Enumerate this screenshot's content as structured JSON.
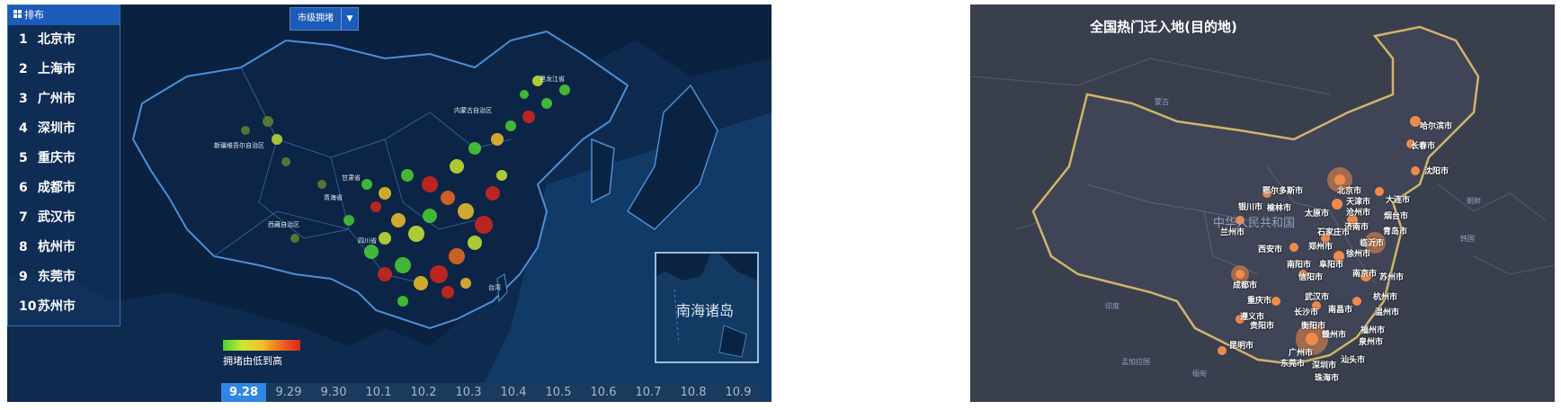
{
  "left_map": {
    "ranking": {
      "header": "排布",
      "items": [
        {
          "rank": "1",
          "city": "北京市"
        },
        {
          "rank": "2",
          "city": "上海市"
        },
        {
          "rank": "3",
          "city": "广州市"
        },
        {
          "rank": "4",
          "city": "深圳市"
        },
        {
          "rank": "5",
          "city": "重庆市"
        },
        {
          "rank": "6",
          "city": "成都市"
        },
        {
          "rank": "7",
          "city": "武汉市"
        },
        {
          "rank": "8",
          "city": "杭州市"
        },
        {
          "rank": "9",
          "city": "东莞市"
        },
        {
          "rank": "10",
          "city": "苏州市"
        }
      ]
    },
    "dropdown": {
      "value": "市级拥堵"
    },
    "legend": {
      "label": "拥堵由低到高",
      "colors": [
        "#4ad234",
        "#c9e832",
        "#f2c12a",
        "#ef6a1f",
        "#d8261b"
      ]
    },
    "inset_label": "南海诸岛",
    "timeline": {
      "dates": [
        "9.28",
        "9.29",
        "9.30",
        "10.1",
        "10.2",
        "10.3",
        "10.4",
        "10.5",
        "10.6",
        "10.7",
        "10.8",
        "10.9"
      ],
      "active_index": 0
    },
    "region_labels": [
      "黑龙江省",
      "内蒙古自治区",
      "新疆维吾尔自治区",
      "甘肃省",
      "青海省",
      "西藏自治区",
      "四川省",
      "台湾"
    ]
  },
  "right_map": {
    "title": "全国热门迁入地(目的地)",
    "countries": [
      "蒙古",
      "中华人民共和国",
      "朝鲜",
      "韩国",
      "缅甸",
      "孟加拉国",
      "印度"
    ],
    "cities": [
      "哈尔滨市",
      "长春市",
      "沈阳市",
      "北京市",
      "天津市",
      "大连市",
      "鄂尔多斯市",
      "银川市",
      "榆林市",
      "太原市",
      "沧州市",
      "烟台市",
      "石家庄市",
      "济南市",
      "青岛市",
      "兰州市",
      "西安市",
      "郑州市",
      "临沂市",
      "徐州市",
      "南阳市",
      "阜阳市",
      "南京市",
      "苏州市",
      "信阳市",
      "成都市",
      "重庆市",
      "武汉市",
      "杭州市",
      "长沙市",
      "南昌市",
      "温州市",
      "贵阳市",
      "遵义市",
      "衡阳市",
      "赣州市",
      "福州市",
      "泉州市",
      "昆明市",
      "广州市",
      "深圳市",
      "东莞市",
      "汕头市",
      "珠海市"
    ]
  },
  "colors": {
    "left_bg": "#0e2a4e",
    "right_bg": "#3a3f4e",
    "accent": "#2f86e3",
    "hot_spot": "#f08a4b"
  }
}
